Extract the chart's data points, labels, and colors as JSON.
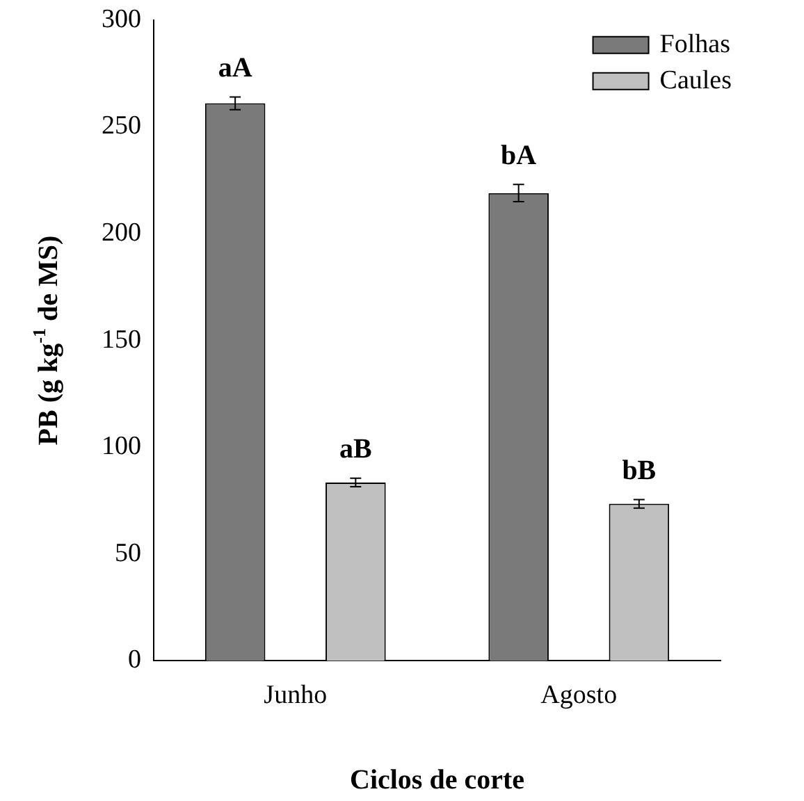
{
  "chart_data": {
    "type": "bar",
    "xlabel": "Ciclos de corte",
    "ylabel": "PB (g kg$^{-1}$ de MS)",
    "categories": [
      "Junho",
      "Agosto"
    ],
    "series": [
      {
        "name": "Folhas",
        "color": "#7a7a7a",
        "values": [
          261,
          219
        ],
        "errors": [
          3,
          4
        ]
      },
      {
        "name": "Caules",
        "color": "#c0c0c0",
        "values": [
          83.5,
          73.5
        ],
        "errors": [
          2,
          2
        ]
      }
    ],
    "ylim": [
      0,
      300
    ],
    "yticks": [
      0,
      50,
      100,
      150,
      200,
      250,
      300
    ],
    "grid": false,
    "legend": "top right",
    "annotations": [
      "aA",
      "aB",
      "bA",
      "bB"
    ]
  }
}
